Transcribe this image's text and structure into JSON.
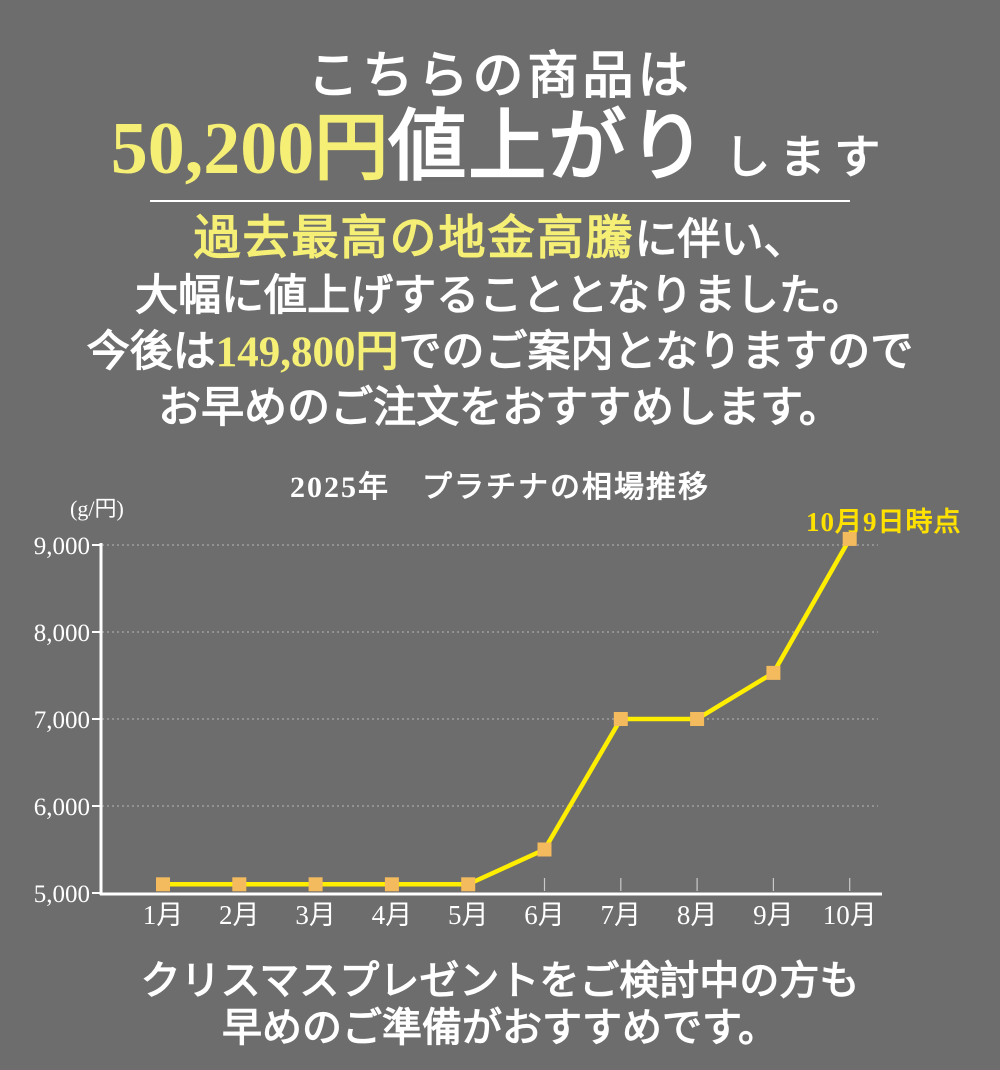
{
  "colors": {
    "background": "#6d6d6d",
    "text": "#ffffff",
    "pale_yellow": "#f5ef75",
    "bright_yellow": "#ffe100",
    "line_yellow": "#ffee00",
    "marker_orange": "#f3ba5e",
    "grid": "#a8a8a8"
  },
  "header": {
    "line1": "こちらの商品は",
    "price_highlight": "50,200円",
    "line2_main": "値上がり",
    "line2_suffix": "します"
  },
  "message": {
    "l1_highlight": "過去最高の地金高騰",
    "l1_rest": "に伴い、",
    "l2": "大幅に値上げすることとなりました。",
    "l3_prefix": "今後は",
    "l3_price": "149,800円",
    "l3_suffix": "でのご案内となりますので",
    "l4": "お早めのご注文をおすすめします。"
  },
  "chart_data": {
    "type": "line",
    "title": "2025年　プラチナの相場推移",
    "ylabel": "(g/円)",
    "annotation": "10月9日時点",
    "categories": [
      "1月",
      "2月",
      "3月",
      "4月",
      "5月",
      "6月",
      "7月",
      "8月",
      "9月",
      "10月"
    ],
    "values": [
      5100,
      5100,
      5100,
      5100,
      5100,
      5500,
      7000,
      7000,
      7530,
      9070
    ],
    "ylim": [
      5000,
      9000
    ],
    "yticks": [
      5000,
      6000,
      7000,
      8000,
      9000
    ],
    "grid": "dotted horizontal",
    "legend": "none",
    "line_color": "#ffee00",
    "marker_color": "#f3ba5e",
    "marker_shape": "square"
  },
  "footer": {
    "l1": "クリスマスプレゼントをご検討中の方も",
    "l2": "早めのご準備がおすすめです。"
  }
}
